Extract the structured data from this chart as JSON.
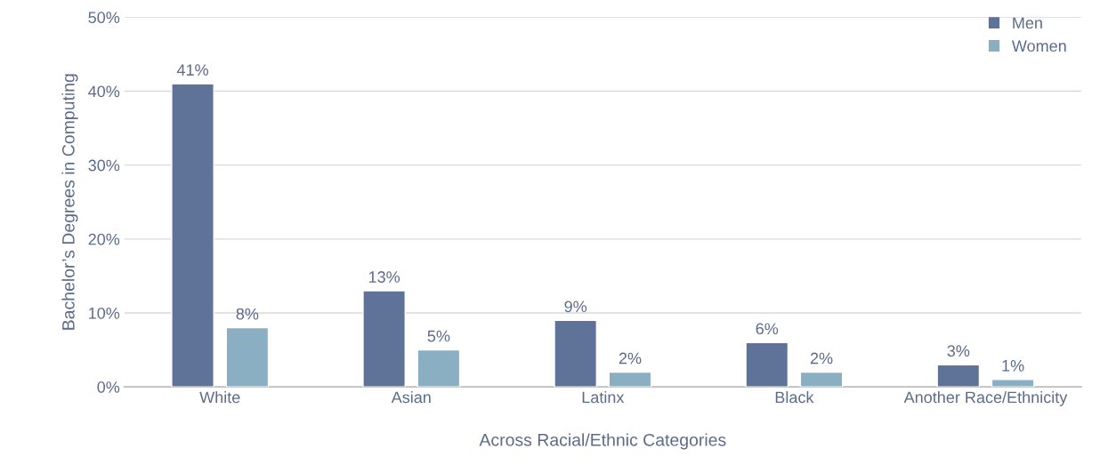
{
  "chart_data": {
    "type": "bar",
    "categories": [
      "White",
      "Asian",
      "Latinx",
      "Black",
      "Another Race/Ethnicity"
    ],
    "series": [
      {
        "name": "Men",
        "color": "#5f7399",
        "values": [
          41,
          13,
          9,
          6,
          3
        ],
        "value_labels": [
          "41%",
          "13%",
          "9%",
          "6%",
          "3%"
        ]
      },
      {
        "name": "Women",
        "color": "#8aafc3",
        "values": [
          8,
          5,
          2,
          2,
          1
        ],
        "value_labels": [
          "8%",
          "5%",
          "2%",
          "2%",
          "1%"
        ]
      }
    ],
    "xlabel": "Across Racial/Ethnic Categories",
    "ylabel": "Bachelor’s Degrees in Computing",
    "ylim": [
      0,
      50
    ],
    "yticks": [
      {
        "value": 0,
        "label": "0%"
      },
      {
        "value": 10,
        "label": "10%"
      },
      {
        "value": 20,
        "label": "20%"
      },
      {
        "value": 30,
        "label": "30%"
      },
      {
        "value": 40,
        "label": "40%"
      },
      {
        "value": 50,
        "label": "50%"
      }
    ],
    "grid": "y",
    "legend": "top right"
  }
}
